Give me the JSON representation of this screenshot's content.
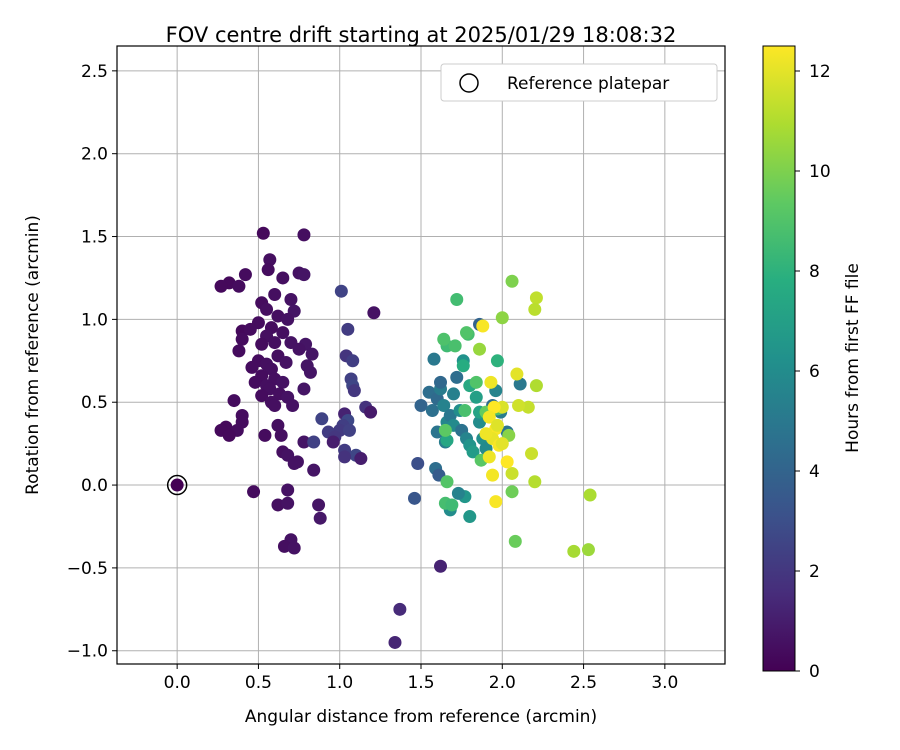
{
  "chart_data": {
    "type": "scatter",
    "title": "FOV centre drift starting at 2025/01/29 18:08:32",
    "xlabel": "Angular distance from reference (arcmin)",
    "ylabel": "Rotation from reference (arcmin)",
    "xlim": [
      -0.37,
      3.37
    ],
    "ylim": [
      -1.08,
      2.65
    ],
    "xticks": [
      "0.0",
      "0.5",
      "1.0",
      "1.5",
      "2.0",
      "2.5",
      "3.0"
    ],
    "xtick_values": [
      0,
      0.5,
      1.0,
      1.5,
      2.0,
      2.5,
      3.0
    ],
    "yticks": [
      "−1.0",
      "−0.5",
      "0.0",
      "0.5",
      "1.0",
      "1.5",
      "2.0",
      "2.5"
    ],
    "ytick_values": [
      -1.0,
      -0.5,
      0,
      0.5,
      1.0,
      1.5,
      2.0,
      2.5
    ],
    "grid": true,
    "legend": {
      "position": "top-right",
      "entries": [
        {
          "label": "Reference platepar",
          "marker": "open-circle"
        }
      ]
    },
    "colorbar": {
      "label": "Hours from first FF file",
      "colormap": "viridis",
      "range": [
        0,
        12.5
      ],
      "ticks": [
        "0",
        "2",
        "4",
        "6",
        "8",
        "10",
        "12"
      ],
      "tick_values": [
        0,
        2,
        4,
        6,
        8,
        10,
        12
      ]
    },
    "reference_point": {
      "x": 0.0,
      "y": 0.0
    },
    "series": [
      {
        "points": [
          {
            "x": 0.0,
            "y": 0.0,
            "h": 0.0
          },
          {
            "x": 0.53,
            "y": 1.52,
            "h": 0.3
          },
          {
            "x": 0.78,
            "y": 1.51,
            "h": 0.5
          },
          {
            "x": 0.57,
            "y": 1.36,
            "h": 0.5
          },
          {
            "x": 0.56,
            "y": 1.3,
            "h": 0.4
          },
          {
            "x": 0.75,
            "y": 1.28,
            "h": 0.6
          },
          {
            "x": 0.78,
            "y": 1.27,
            "h": 0.7
          },
          {
            "x": 0.42,
            "y": 1.27,
            "h": 0.4
          },
          {
            "x": 0.65,
            "y": 1.25,
            "h": 0.5
          },
          {
            "x": 0.32,
            "y": 1.22,
            "h": 0.3
          },
          {
            "x": 0.27,
            "y": 1.2,
            "h": 0.3
          },
          {
            "x": 0.38,
            "y": 1.2,
            "h": 0.4
          },
          {
            "x": 0.6,
            "y": 1.15,
            "h": 0.5
          },
          {
            "x": 0.7,
            "y": 1.12,
            "h": 0.6
          },
          {
            "x": 0.52,
            "y": 1.1,
            "h": 0.4
          },
          {
            "x": 0.55,
            "y": 1.06,
            "h": 0.5
          },
          {
            "x": 0.72,
            "y": 1.05,
            "h": 0.7
          },
          {
            "x": 0.62,
            "y": 1.02,
            "h": 0.5
          },
          {
            "x": 0.68,
            "y": 1.0,
            "h": 0.6
          },
          {
            "x": 0.5,
            "y": 0.98,
            "h": 0.4
          },
          {
            "x": 0.58,
            "y": 0.95,
            "h": 0.4
          },
          {
            "x": 0.4,
            "y": 0.93,
            "h": 0.3
          },
          {
            "x": 0.45,
            "y": 0.94,
            "h": 0.4
          },
          {
            "x": 0.65,
            "y": 0.92,
            "h": 0.5
          },
          {
            "x": 0.55,
            "y": 0.9,
            "h": 0.5
          },
          {
            "x": 0.4,
            "y": 0.88,
            "h": 0.4
          },
          {
            "x": 0.6,
            "y": 0.86,
            "h": 0.5
          },
          {
            "x": 0.7,
            "y": 0.86,
            "h": 0.6
          },
          {
            "x": 0.79,
            "y": 0.85,
            "h": 0.7
          },
          {
            "x": 0.52,
            "y": 0.85,
            "h": 0.4
          },
          {
            "x": 0.75,
            "y": 0.82,
            "h": 0.6
          },
          {
            "x": 0.38,
            "y": 0.81,
            "h": 0.4
          },
          {
            "x": 0.83,
            "y": 0.79,
            "h": 0.7
          },
          {
            "x": 0.62,
            "y": 0.78,
            "h": 0.5
          },
          {
            "x": 0.5,
            "y": 0.75,
            "h": 0.4
          },
          {
            "x": 0.55,
            "y": 0.73,
            "h": 0.5
          },
          {
            "x": 0.67,
            "y": 0.74,
            "h": 0.6
          },
          {
            "x": 0.46,
            "y": 0.71,
            "h": 0.4
          },
          {
            "x": 0.58,
            "y": 0.7,
            "h": 0.5
          },
          {
            "x": 0.8,
            "y": 0.72,
            "h": 0.7
          },
          {
            "x": 0.82,
            "y": 0.68,
            "h": 0.7
          },
          {
            "x": 0.52,
            "y": 0.66,
            "h": 0.4
          },
          {
            "x": 0.6,
            "y": 0.64,
            "h": 0.5
          },
          {
            "x": 0.48,
            "y": 0.62,
            "h": 0.4
          },
          {
            "x": 0.55,
            "y": 0.6,
            "h": 0.5
          },
          {
            "x": 0.65,
            "y": 0.62,
            "h": 0.6
          },
          {
            "x": 0.57,
            "y": 0.58,
            "h": 0.5
          },
          {
            "x": 0.78,
            "y": 0.58,
            "h": 0.7
          },
          {
            "x": 0.63,
            "y": 0.55,
            "h": 0.5
          },
          {
            "x": 0.52,
            "y": 0.54,
            "h": 0.4
          },
          {
            "x": 0.68,
            "y": 0.53,
            "h": 0.6
          },
          {
            "x": 0.58,
            "y": 0.5,
            "h": 0.5
          },
          {
            "x": 0.35,
            "y": 0.51,
            "h": 0.4
          },
          {
            "x": 0.6,
            "y": 0.48,
            "h": 0.5
          },
          {
            "x": 0.71,
            "y": 0.48,
            "h": 0.6
          },
          {
            "x": 0.4,
            "y": 0.42,
            "h": 0.4
          },
          {
            "x": 0.4,
            "y": 0.38,
            "h": 0.4
          },
          {
            "x": 0.3,
            "y": 0.35,
            "h": 0.3
          },
          {
            "x": 0.27,
            "y": 0.33,
            "h": 0.3
          },
          {
            "x": 0.37,
            "y": 0.33,
            "h": 0.4
          },
          {
            "x": 0.62,
            "y": 0.36,
            "h": 0.5
          },
          {
            "x": 0.32,
            "y": 0.3,
            "h": 0.3
          },
          {
            "x": 0.54,
            "y": 0.3,
            "h": 0.4
          },
          {
            "x": 0.64,
            "y": 0.3,
            "h": 0.5
          },
          {
            "x": 0.78,
            "y": 0.26,
            "h": 0.7
          },
          {
            "x": 0.65,
            "y": 0.2,
            "h": 0.5
          },
          {
            "x": 0.68,
            "y": 0.18,
            "h": 0.6
          },
          {
            "x": 0.74,
            "y": 0.14,
            "h": 0.6
          },
          {
            "x": 0.72,
            "y": 0.13,
            "h": 0.6
          },
          {
            "x": 0.84,
            "y": 0.09,
            "h": 0.7
          },
          {
            "x": 0.47,
            "y": -0.04,
            "h": 0.4
          },
          {
            "x": 0.68,
            "y": -0.03,
            "h": 0.6
          },
          {
            "x": 0.62,
            "y": -0.12,
            "h": 0.5
          },
          {
            "x": 0.68,
            "y": -0.11,
            "h": 0.6
          },
          {
            "x": 0.87,
            "y": -0.12,
            "h": 0.7
          },
          {
            "x": 0.88,
            "y": -0.2,
            "h": 0.8
          },
          {
            "x": 0.7,
            "y": -0.33,
            "h": 0.6
          },
          {
            "x": 0.66,
            "y": -0.37,
            "h": 0.5
          },
          {
            "x": 0.72,
            "y": -0.38,
            "h": 0.6
          },
          {
            "x": 1.01,
            "y": 1.17,
            "h": 2.5
          },
          {
            "x": 1.21,
            "y": 1.04,
            "h": 0.6
          },
          {
            "x": 1.05,
            "y": 0.94,
            "h": 2.2
          },
          {
            "x": 1.04,
            "y": 0.78,
            "h": 1.9
          },
          {
            "x": 1.08,
            "y": 0.75,
            "h": 2.3
          },
          {
            "x": 1.07,
            "y": 0.64,
            "h": 2.4
          },
          {
            "x": 1.08,
            "y": 0.6,
            "h": 2.6
          },
          {
            "x": 1.09,
            "y": 0.57,
            "h": 2.0
          },
          {
            "x": 1.16,
            "y": 0.47,
            "h": 1.8
          },
          {
            "x": 1.19,
            "y": 0.44,
            "h": 0.9
          },
          {
            "x": 1.03,
            "y": 0.43,
            "h": 1.2
          },
          {
            "x": 0.89,
            "y": 0.4,
            "h": 2.5
          },
          {
            "x": 1.05,
            "y": 0.39,
            "h": 2.7
          },
          {
            "x": 1.02,
            "y": 0.36,
            "h": 2.3
          },
          {
            "x": 1.0,
            "y": 0.33,
            "h": 2.1
          },
          {
            "x": 1.06,
            "y": 0.33,
            "h": 2.4
          },
          {
            "x": 0.93,
            "y": 0.32,
            "h": 2.2
          },
          {
            "x": 0.97,
            "y": 0.29,
            "h": 2.0
          },
          {
            "x": 0.96,
            "y": 0.26,
            "h": 1.0
          },
          {
            "x": 0.84,
            "y": 0.26,
            "h": 2.4
          },
          {
            "x": 1.03,
            "y": 0.21,
            "h": 2.2
          },
          {
            "x": 1.1,
            "y": 0.18,
            "h": 2.6
          },
          {
            "x": 1.13,
            "y": 0.16,
            "h": 1.0
          },
          {
            "x": 1.03,
            "y": 0.17,
            "h": 1.8
          },
          {
            "x": 1.37,
            "y": -0.75,
            "h": 1.5
          },
          {
            "x": 1.34,
            "y": -0.95,
            "h": 1.3
          },
          {
            "x": 1.62,
            "y": -0.49,
            "h": 1.2
          },
          {
            "x": 1.48,
            "y": 0.13,
            "h": 3.0
          },
          {
            "x": 1.46,
            "y": -0.08,
            "h": 3.3
          },
          {
            "x": 1.5,
            "y": 0.48,
            "h": 4.0
          },
          {
            "x": 1.55,
            "y": 0.56,
            "h": 4.5
          },
          {
            "x": 1.58,
            "y": 0.76,
            "h": 5.0
          },
          {
            "x": 1.6,
            "y": 0.52,
            "h": 4.3
          },
          {
            "x": 1.62,
            "y": 0.58,
            "h": 5.2
          },
          {
            "x": 1.57,
            "y": 0.45,
            "h": 4.6
          },
          {
            "x": 1.64,
            "y": 0.48,
            "h": 5.5
          },
          {
            "x": 1.6,
            "y": 0.32,
            "h": 4.8
          },
          {
            "x": 1.65,
            "y": 0.26,
            "h": 5.2
          },
          {
            "x": 1.62,
            "y": 0.62,
            "h": 4.2
          },
          {
            "x": 1.66,
            "y": 0.38,
            "h": 5.7
          },
          {
            "x": 1.68,
            "y": 0.42,
            "h": 5.0
          },
          {
            "x": 1.7,
            "y": 0.36,
            "h": 5.9
          },
          {
            "x": 1.72,
            "y": 0.65,
            "h": 4.5
          },
          {
            "x": 1.7,
            "y": 0.55,
            "h": 5.4
          },
          {
            "x": 1.74,
            "y": 0.45,
            "h": 6.1
          },
          {
            "x": 1.75,
            "y": 0.33,
            "h": 4.7
          },
          {
            "x": 1.76,
            "y": 0.75,
            "h": 6.3
          },
          {
            "x": 1.78,
            "y": 0.28,
            "h": 5.6
          },
          {
            "x": 1.8,
            "y": 0.24,
            "h": 6.4
          },
          {
            "x": 1.82,
            "y": 0.2,
            "h": 6.8
          },
          {
            "x": 1.77,
            "y": -0.07,
            "h": 6.5
          },
          {
            "x": 1.73,
            "y": -0.05,
            "h": 5.5
          },
          {
            "x": 1.68,
            "y": -0.15,
            "h": 6.0
          },
          {
            "x": 1.8,
            "y": -0.19,
            "h": 6.6
          },
          {
            "x": 1.59,
            "y": 0.1,
            "h": 4.5
          },
          {
            "x": 1.61,
            "y": 0.06,
            "h": 3.6
          },
          {
            "x": 1.86,
            "y": 0.38,
            "h": 6.0
          },
          {
            "x": 1.86,
            "y": 0.97,
            "h": 4.0
          },
          {
            "x": 1.94,
            "y": 0.48,
            "h": 4.5
          },
          {
            "x": 1.96,
            "y": 0.57,
            "h": 5.6
          },
          {
            "x": 1.99,
            "y": 0.44,
            "h": 5.2
          },
          {
            "x": 2.03,
            "y": 0.32,
            "h": 4.8
          },
          {
            "x": 2.11,
            "y": 0.61,
            "h": 5.0
          },
          {
            "x": 1.88,
            "y": 0.28,
            "h": 6.1
          },
          {
            "x": 1.9,
            "y": 0.22,
            "h": 5.9
          },
          {
            "x": 1.84,
            "y": 0.53,
            "h": 7.0
          },
          {
            "x": 1.86,
            "y": 0.44,
            "h": 7.2
          },
          {
            "x": 1.97,
            "y": 0.75,
            "h": 8.0
          },
          {
            "x": 1.8,
            "y": 0.6,
            "h": 7.5
          },
          {
            "x": 1.76,
            "y": 0.72,
            "h": 7.7
          },
          {
            "x": 1.66,
            "y": 0.27,
            "h": 7.4
          },
          {
            "x": 1.66,
            "y": 0.84,
            "h": 8.5
          },
          {
            "x": 1.71,
            "y": 0.84,
            "h": 8.8
          },
          {
            "x": 1.64,
            "y": 0.88,
            "h": 8.9
          },
          {
            "x": 1.72,
            "y": 1.12,
            "h": 8.6
          },
          {
            "x": 1.79,
            "y": 0.91,
            "h": 8.7
          },
          {
            "x": 1.78,
            "y": 0.92,
            "h": 9.0
          },
          {
            "x": 1.65,
            "y": 0.33,
            "h": 9.3
          },
          {
            "x": 1.66,
            "y": 0.02,
            "h": 9.1
          },
          {
            "x": 1.65,
            "y": -0.11,
            "h": 8.7
          },
          {
            "x": 1.69,
            "y": -0.12,
            "h": 8.5
          },
          {
            "x": 1.84,
            "y": 0.62,
            "h": 9.0
          },
          {
            "x": 1.77,
            "y": 0.45,
            "h": 8.8
          },
          {
            "x": 1.87,
            "y": 0.15,
            "h": 9.2
          },
          {
            "x": 1.9,
            "y": 0.44,
            "h": 9.5
          },
          {
            "x": 2.0,
            "y": 1.01,
            "h": 10.3
          },
          {
            "x": 2.06,
            "y": 1.23,
            "h": 10.0
          },
          {
            "x": 2.06,
            "y": -0.04,
            "h": 9.7
          },
          {
            "x": 2.08,
            "y": -0.34,
            "h": 9.6
          },
          {
            "x": 1.97,
            "y": 0.46,
            "h": 8.9
          },
          {
            "x": 1.86,
            "y": 0.82,
            "h": 10.5
          },
          {
            "x": 2.04,
            "y": 0.3,
            "h": 10.2
          },
          {
            "x": 2.21,
            "y": 1.13,
            "h": 11.3
          },
          {
            "x": 2.2,
            "y": 1.06,
            "h": 11.2
          },
          {
            "x": 2.21,
            "y": 0.6,
            "h": 11.0
          },
          {
            "x": 2.2,
            "y": 0.02,
            "h": 11.1
          },
          {
            "x": 2.18,
            "y": 0.19,
            "h": 11.5
          },
          {
            "x": 2.16,
            "y": 0.47,
            "h": 11.4
          },
          {
            "x": 2.1,
            "y": 0.48,
            "h": 11.6
          },
          {
            "x": 2.09,
            "y": 0.67,
            "h": 12.0
          },
          {
            "x": 2.0,
            "y": 0.47,
            "h": 11.8
          },
          {
            "x": 2.06,
            "y": 0.07,
            "h": 11.5
          },
          {
            "x": 2.44,
            "y": -0.4,
            "h": 10.8
          },
          {
            "x": 2.53,
            "y": -0.39,
            "h": 10.6
          },
          {
            "x": 2.54,
            "y": -0.06,
            "h": 10.9
          },
          {
            "x": 1.88,
            "y": 0.96,
            "h": 12.4
          },
          {
            "x": 1.93,
            "y": 0.62,
            "h": 12.2
          },
          {
            "x": 1.95,
            "y": 0.47,
            "h": 12.5
          },
          {
            "x": 1.92,
            "y": 0.41,
            "h": 12.3
          },
          {
            "x": 1.96,
            "y": 0.34,
            "h": 12.4
          },
          {
            "x": 1.94,
            "y": 0.28,
            "h": 12.1
          },
          {
            "x": 1.98,
            "y": 0.24,
            "h": 12.4
          },
          {
            "x": 1.92,
            "y": 0.17,
            "h": 12.2
          },
          {
            "x": 2.03,
            "y": 0.14,
            "h": 12.5
          },
          {
            "x": 1.94,
            "y": 0.06,
            "h": 12.3
          },
          {
            "x": 1.96,
            "y": -0.1,
            "h": 12.4
          },
          {
            "x": 2.0,
            "y": 0.25,
            "h": 12.0
          },
          {
            "x": 1.9,
            "y": 0.31,
            "h": 12.2
          },
          {
            "x": 1.97,
            "y": 0.36,
            "h": 11.9
          }
        ]
      }
    ]
  }
}
